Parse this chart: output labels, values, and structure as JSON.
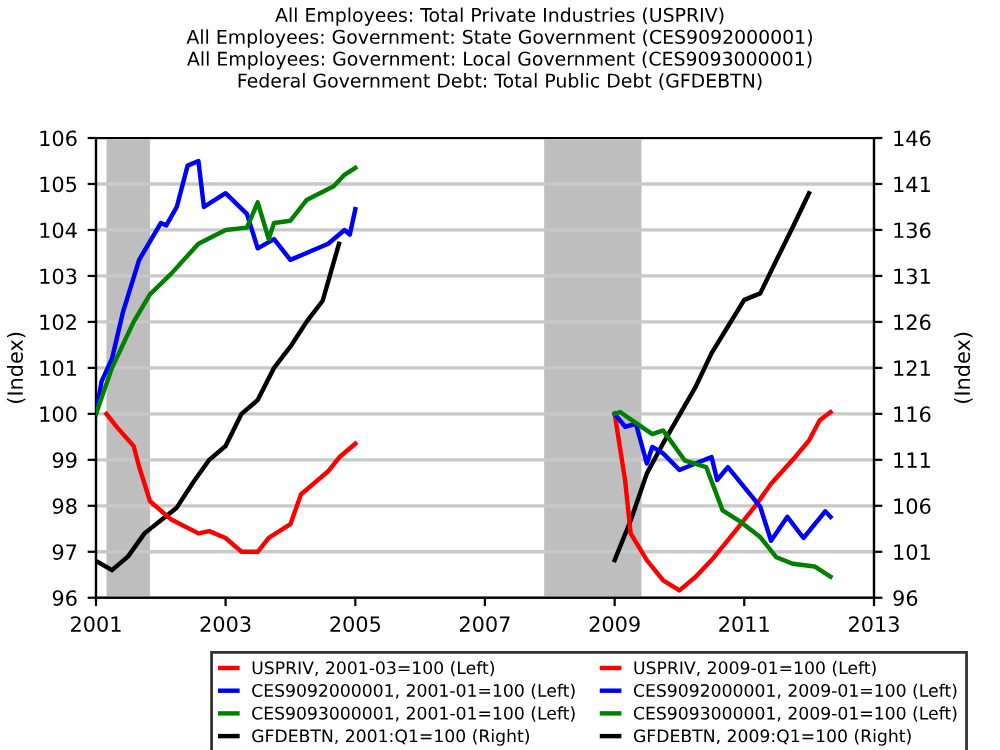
{
  "chart_data": {
    "type": "line",
    "title": "All Employees: Total Private Industries (USPRIV)\nAll Employees: Government: State Government (CES9092000001)\nAll Employees: Government: Local Government (CES9093000001)\nFederal Government Debt: Total Public Debt (GFDEBTN)",
    "ylabel": "(Index)",
    "y2label": "(Index)",
    "xlim": [
      "2001-01",
      "2013-01"
    ],
    "xticks": [
      "2001",
      "2003",
      "2005",
      "2007",
      "2009",
      "2011",
      "2013"
    ],
    "ylim": [
      96,
      106
    ],
    "yticks": [
      96,
      97,
      98,
      99,
      100,
      101,
      102,
      103,
      104,
      105,
      106
    ],
    "y2lim": [
      96,
      146
    ],
    "y2ticks": [
      96,
      101,
      106,
      111,
      116,
      121,
      126,
      131,
      136,
      141,
      146
    ],
    "grid": "y",
    "legend": "bottom",
    "marker": "none",
    "line_style": "solid",
    "bands": [
      {
        "axis": "x",
        "from": "2001-03",
        "to": "2001-11",
        "color": "#bebebe"
      },
      {
        "axis": "x",
        "from": "2007-12",
        "to": "2009-06",
        "color": "#bebebe"
      }
    ],
    "series": [
      {
        "name": "USPRIV, 2001-03=100 (Left)",
        "color": "#ff0000",
        "x": [
          "2001-03",
          "2001-05",
          "2001-08",
          "2001-09",
          "2001-11",
          "2002-03",
          "2002-08",
          "2002-10",
          "2003-01",
          "2003-04",
          "2003-07",
          "2003-09",
          "2004-01",
          "2004-03",
          "2004-05",
          "2004-08",
          "2004-10",
          "2005-01"
        ],
        "values": [
          100.0,
          99.7,
          99.3,
          98.85,
          98.1,
          97.7,
          97.4,
          97.45,
          97.3,
          97.0,
          97.0,
          97.3,
          97.6,
          98.25,
          98.45,
          98.75,
          99.05,
          99.35
        ]
      },
      {
        "name": "CES9092000001, 2001-01=100 (Left)",
        "color": "#0000ff",
        "x": [
          "2001-01",
          "2001-02",
          "2001-04",
          "2001-06",
          "2001-09",
          "2002-01",
          "2002-02",
          "2002-04",
          "2002-06",
          "2002-08",
          "2002-09",
          "2003-01",
          "2003-05",
          "2003-07",
          "2003-10",
          "2004-01",
          "2004-04",
          "2004-08",
          "2004-11",
          "2004-12",
          "2005-01"
        ],
        "values": [
          100.0,
          100.7,
          101.2,
          102.2,
          103.35,
          104.15,
          104.1,
          104.5,
          105.4,
          105.5,
          104.5,
          104.8,
          104.35,
          103.6,
          103.8,
          103.35,
          103.5,
          103.7,
          104.0,
          103.9,
          104.45
        ]
      },
      {
        "name": "CES9093000001, 2001-01=100 (Left)",
        "color": "#008000",
        "x": [
          "2001-01",
          "2001-04",
          "2001-08",
          "2001-11",
          "2002-03",
          "2002-08",
          "2003-01",
          "2003-05",
          "2003-07",
          "2003-09",
          "2003-10",
          "2004-01",
          "2004-04",
          "2004-09",
          "2004-11",
          "2005-01"
        ],
        "values": [
          100.0,
          101.0,
          102.0,
          102.6,
          103.05,
          103.7,
          104.0,
          104.05,
          104.6,
          103.8,
          104.15,
          104.2,
          104.65,
          104.95,
          105.2,
          105.35
        ]
      },
      {
        "name": "GFDEBTN, 2001:Q1=100 (Right)",
        "color": "#000000",
        "axis": "y2",
        "x": [
          "2001-01",
          "2001-04",
          "2001-07",
          "2001-10",
          "2002-04",
          "2002-07",
          "2002-10",
          "2003-01",
          "2003-04",
          "2003-07",
          "2003-10",
          "2004-01",
          "2004-04",
          "2004-07",
          "2004-10"
        ],
        "values": [
          100,
          99,
          100.5,
          103,
          105.8,
          108.5,
          111,
          112.5,
          116,
          117.5,
          121,
          123.3,
          126,
          128.3,
          134.5
        ]
      },
      {
        "name": "USPRIV, 2009-01=100 (Left)",
        "color": "#ff0000",
        "x": [
          "2009-01",
          "2009-03",
          "2009-04",
          "2009-07",
          "2009-10",
          "2010-01",
          "2010-04",
          "2010-07",
          "2010-11",
          "2011-03",
          "2011-06",
          "2011-10",
          "2012-01",
          "2012-03",
          "2012-05"
        ],
        "values": [
          100.0,
          98.55,
          97.4,
          96.82,
          96.38,
          96.16,
          96.45,
          96.82,
          97.4,
          97.98,
          98.48,
          99.0,
          99.42,
          99.86,
          100.04
        ]
      },
      {
        "name": "CES9092000001, 2009-01=100 (Left)",
        "color": "#0000ff",
        "x": [
          "2009-01",
          "2009-03",
          "2009-05",
          "2009-07",
          "2009-08",
          "2009-10",
          "2010-01",
          "2010-04",
          "2010-07",
          "2010-08",
          "2010-10",
          "2011-02",
          "2011-04",
          "2011-06",
          "2011-09",
          "2011-12",
          "2012-04",
          "2012-05"
        ],
        "values": [
          100.0,
          99.72,
          99.78,
          98.92,
          99.28,
          99.14,
          98.78,
          98.92,
          99.06,
          98.56,
          98.84,
          98.26,
          97.98,
          97.24,
          97.76,
          97.3,
          97.88,
          97.76
        ]
      },
      {
        "name": "CES9093000001, 2009-01=100 (Left)",
        "color": "#008000",
        "x": [
          "2009-01",
          "2009-02",
          "2009-04",
          "2009-08",
          "2009-10",
          "2010-02",
          "2010-06",
          "2010-09",
          "2010-12",
          "2011-04",
          "2011-07",
          "2011-10",
          "2012-02",
          "2012-05"
        ],
        "values": [
          100.0,
          100.04,
          99.88,
          99.56,
          99.64,
          98.98,
          98.84,
          97.9,
          97.68,
          97.32,
          96.88,
          96.74,
          96.68,
          96.46
        ]
      },
      {
        "name": "GFDEBTN, 2009:Q1=100 (Right)",
        "color": "#000000",
        "axis": "y2",
        "x": [
          "2009-01",
          "2009-04",
          "2009-07",
          "2009-10",
          "2010-04",
          "2010-07",
          "2010-10",
          "2011-01",
          "2011-04",
          "2011-07",
          "2011-10",
          "2012-01"
        ],
        "values": [
          100.1,
          104.4,
          109.5,
          112.8,
          118.9,
          122.6,
          125.5,
          128.4,
          129.1,
          132.7,
          136.3,
          140.0
        ]
      }
    ]
  }
}
